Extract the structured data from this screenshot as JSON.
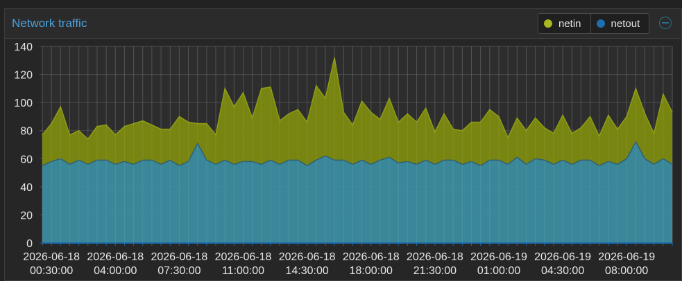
{
  "panel": {
    "title": "Network traffic"
  },
  "legend": [
    {
      "name": "netin",
      "color": "#a8b820"
    },
    {
      "name": "netout",
      "color": "#1e6fb0"
    }
  ],
  "chart_data": {
    "type": "area",
    "stacked": true,
    "xlabel": "",
    "ylabel": "",
    "ylim": [
      0,
      140
    ],
    "yticks": [
      0,
      20,
      40,
      60,
      80,
      100,
      120,
      140
    ],
    "grid": true,
    "legend_position": "top-right",
    "xtick_labels": [
      [
        "2026-06-18",
        "00:30:00"
      ],
      [
        "2026-06-18",
        "04:00:00"
      ],
      [
        "2026-06-18",
        "07:30:00"
      ],
      [
        "2026-06-18",
        "11:00:00"
      ],
      [
        "2026-06-18",
        "14:30:00"
      ],
      [
        "2026-06-18",
        "18:00:00"
      ],
      [
        "2026-06-18",
        "21:30:00"
      ],
      [
        "2026-06-19",
        "01:00:00"
      ],
      [
        "2026-06-19",
        "04:30:00"
      ],
      [
        "2026-06-19",
        "08:00:00"
      ]
    ],
    "x_start": "2026-06-18 00:00:00",
    "x_step_minutes": 30,
    "series": [
      {
        "name": "netout",
        "color": "#3d8fa4",
        "values": [
          55,
          58,
          60,
          56,
          59,
          56,
          59,
          59,
          56,
          58,
          56,
          59,
          59,
          56,
          59,
          55,
          58,
          71,
          59,
          56,
          59,
          56,
          58,
          58,
          56,
          59,
          56,
          59,
          59,
          55,
          59,
          62,
          59,
          59,
          56,
          59,
          56,
          59,
          61,
          57,
          58,
          56,
          59,
          56,
          59,
          59,
          56,
          58,
          55,
          59,
          59,
          56,
          61,
          56,
          60,
          59,
          56,
          59,
          56,
          59,
          59,
          55,
          58,
          56,
          60,
          72,
          60,
          56,
          60,
          56
        ]
      },
      {
        "name": "netin",
        "color": "#7d8a10",
        "values": [
          22,
          27,
          37,
          21,
          21,
          18,
          24,
          25,
          21,
          25,
          29,
          28,
          25,
          25,
          22,
          35,
          28,
          14,
          26,
          21,
          51,
          41,
          49,
          31,
          54,
          52,
          31,
          33,
          36,
          31,
          53,
          41,
          73,
          34,
          28,
          42,
          37,
          29,
          42,
          29,
          34,
          30,
          37,
          23,
          33,
          22,
          24,
          28,
          31,
          36,
          31,
          19,
          28,
          24,
          29,
          23,
          22,
          32,
          22,
          23,
          31,
          21,
          33,
          25,
          30,
          38,
          32,
          22,
          46,
          37
        ]
      }
    ]
  }
}
